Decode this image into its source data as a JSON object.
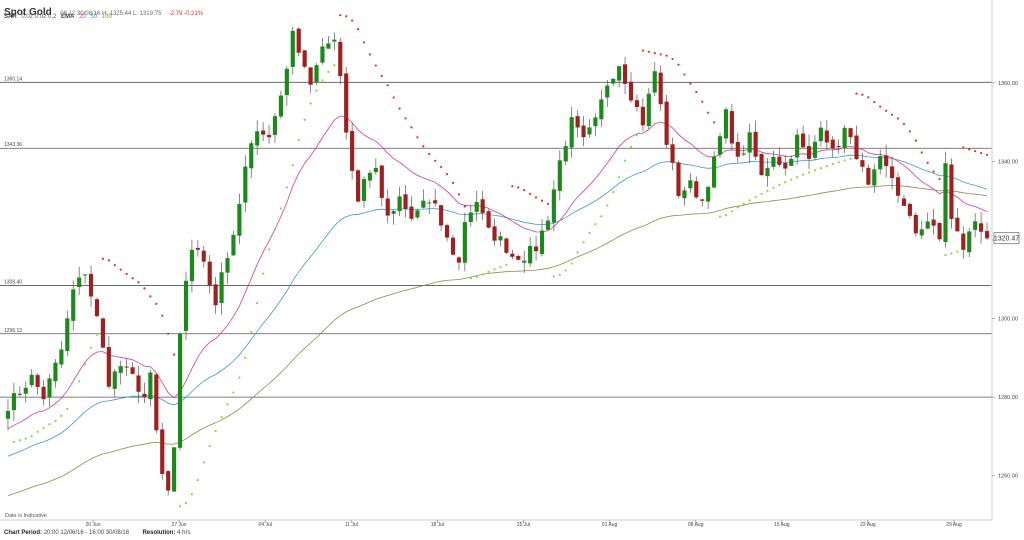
{
  "header": {
    "title": "Spot Gold",
    "ohlc": "08.12.30/08/16   H: 1325.44  L: 1319.75",
    "change": "-2.79 -0.21%"
  },
  "indicators": {
    "sar_label": "SAR",
    "sar_params": "0.02  0.02  0.2",
    "ema_label": "EMA",
    "ema_20": "20",
    "ema_50": "50",
    "ema_100": "100"
  },
  "footer": {
    "period_label": "Chart Period:",
    "period_value": "20:00 12/06/16 - 16:00 30/08/16",
    "resolution_label": "Resolution:",
    "resolution_value": "4 hrs"
  },
  "chart_data": {
    "type": "candlestick",
    "current_price": "1320.47",
    "current_value": 1320.47,
    "ylim": [
      1250,
      1376
    ],
    "y_ticks": [
      {
        "value": 1260,
        "label": "1260.00"
      },
      {
        "value": 1280,
        "label": "1280.00"
      },
      {
        "value": 1300,
        "label": "1300.00"
      },
      {
        "value": 1320,
        "label": "1320.00"
      },
      {
        "value": 1340,
        "label": "1340.00"
      },
      {
        "value": 1360,
        "label": "1360.00"
      }
    ],
    "x_ticks": [
      "20 Jun",
      "27 Jun",
      "04 Jul",
      "11 Jul",
      "18 Jul",
      "25 Jul",
      "01 Aug",
      "08 Aug",
      "15 Aug",
      "22 Aug",
      "29 Aug"
    ],
    "levels": [
      {
        "value": 1360.14,
        "label": "1360.14"
      },
      {
        "value": 1343.36,
        "label": "1343.36"
      },
      {
        "value": 1308.4,
        "label": "1308.40"
      },
      {
        "value": 1296.13,
        "label": "1296.13"
      },
      {
        "value": 1280,
        "label": ""
      }
    ],
    "annotation": "Date is Indicative",
    "grid": false,
    "price_path": [
      [
        0,
        1278
      ],
      [
        4,
        1285
      ],
      [
        6,
        1280
      ],
      [
        9,
        1292
      ],
      [
        11,
        1307
      ],
      [
        13,
        1312
      ],
      [
        15,
        1300
      ],
      [
        17,
        1284
      ],
      [
        19,
        1288
      ],
      [
        21,
        1285
      ],
      [
        23,
        1280
      ],
      [
        24,
        1285
      ],
      [
        25,
        1271
      ],
      [
        26,
        1260
      ],
      [
        27,
        1256
      ],
      [
        28,
        1266
      ],
      [
        29,
        1295
      ],
      [
        30,
        1310
      ],
      [
        31,
        1318
      ],
      [
        33,
        1315
      ],
      [
        35,
        1304
      ],
      [
        36,
        1312
      ],
      [
        38,
        1320
      ],
      [
        40,
        1338
      ],
      [
        42,
        1349
      ],
      [
        44,
        1346
      ],
      [
        46,
        1357
      ],
      [
        48,
        1372
      ],
      [
        49,
        1369
      ],
      [
        51,
        1360
      ],
      [
        53,
        1368
      ],
      [
        55,
        1372
      ],
      [
        56,
        1362
      ],
      [
        57,
        1348
      ],
      [
        58,
        1338
      ],
      [
        59,
        1330
      ],
      [
        60,
        1336
      ],
      [
        62,
        1338
      ],
      [
        64,
        1325
      ],
      [
        66,
        1330
      ],
      [
        68,
        1325
      ],
      [
        70,
        1330
      ],
      [
        72,
        1328
      ],
      [
        74,
        1320
      ],
      [
        76,
        1314
      ],
      [
        77,
        1325
      ],
      [
        79,
        1330
      ],
      [
        81,
        1322
      ],
      [
        83,
        1320
      ],
      [
        85,
        1316
      ],
      [
        87,
        1316
      ],
      [
        89,
        1318
      ],
      [
        91,
        1326
      ],
      [
        93,
        1340
      ],
      [
        95,
        1350
      ],
      [
        97,
        1345
      ],
      [
        99,
        1350
      ],
      [
        101,
        1360
      ],
      [
        103,
        1365
      ],
      [
        105,
        1357
      ],
      [
        107,
        1350
      ],
      [
        109,
        1363
      ],
      [
        111,
        1345
      ],
      [
        113,
        1332
      ],
      [
        115,
        1334
      ],
      [
        117,
        1330
      ],
      [
        119,
        1340
      ],
      [
        121,
        1352
      ],
      [
        123,
        1340
      ],
      [
        125,
        1346
      ],
      [
        127,
        1336
      ],
      [
        129,
        1342
      ],
      [
        131,
        1338
      ],
      [
        133,
        1346
      ],
      [
        135,
        1340
      ],
      [
        137,
        1350
      ],
      [
        139,
        1342
      ],
      [
        141,
        1348
      ],
      [
        143,
        1342
      ],
      [
        145,
        1333
      ],
      [
        147,
        1340
      ],
      [
        149,
        1336
      ],
      [
        151,
        1328
      ],
      [
        153,
        1322
      ],
      [
        155,
        1325
      ],
      [
        157,
        1320
      ],
      [
        158,
        1340
      ],
      [
        159,
        1325
      ],
      [
        161,
        1318
      ],
      [
        163,
        1325
      ],
      [
        165,
        1321
      ]
    ]
  }
}
